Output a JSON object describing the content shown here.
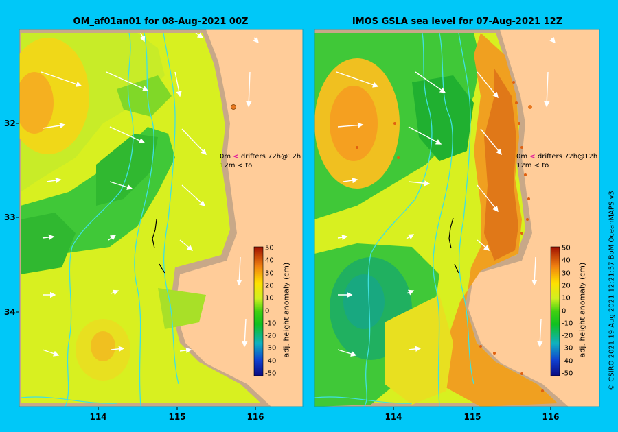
{
  "panels": [
    {
      "title": "OM_af01an01 for 08-Aug-2021 00Z",
      "legend": {
        "depth_top": "0m",
        "depth_bottom": "12m",
        "marker_top": "<",
        "marker_bottom": "<",
        "label_top": "drifters 72h@12h",
        "label_bottom": "to"
      },
      "colorbar": {
        "title": "adj. height anomaly (cm)",
        "ticks": [
          "50",
          "40",
          "30",
          "20",
          "10",
          "0",
          "-10",
          "-20",
          "-30",
          "-40",
          "-50"
        ]
      }
    },
    {
      "title": "IMOS GSLA sea level  for 07-Aug-2021 12Z",
      "legend": {
        "depth_top": "0m",
        "depth_bottom": "12m",
        "marker_top": "<",
        "marker_bottom": "<",
        "label_top": "drifters 72h@12h",
        "label_bottom": "to"
      },
      "colorbar": {
        "title": "adj. height anomaly (cm)",
        "ticks": [
          "50",
          "40",
          "30",
          "20",
          "10",
          "0",
          "-10",
          "-20",
          "-30",
          "-40",
          "-50"
        ]
      }
    }
  ],
  "axes": {
    "x_ticks": [
      "114",
      "115",
      "116"
    ],
    "y_ticks": [
      "32",
      "33",
      "34"
    ]
  },
  "credit": "© CSIRO 2021   19 Aug 2021 12:21:57 BoM OceanMAPS v3",
  "colors": {
    "background": "#00c8f8",
    "land": "#ffcc99",
    "coast_shelf": "#c8a888"
  }
}
